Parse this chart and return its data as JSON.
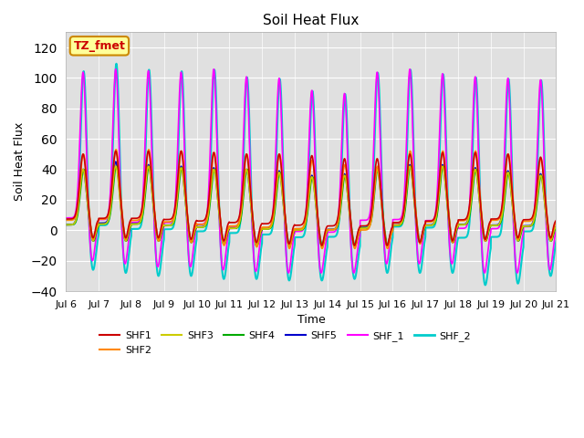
{
  "title": "Soil Heat Flux",
  "xlabel": "Time",
  "ylabel": "Soil Heat Flux",
  "ylim": [
    -40,
    130
  ],
  "yticks": [
    -40,
    -20,
    0,
    20,
    40,
    60,
    80,
    100,
    120
  ],
  "background_color": "#e0e0e0",
  "series": {
    "SHF1": {
      "color": "#cc0000",
      "lw": 1.2
    },
    "SHF2": {
      "color": "#ff8800",
      "lw": 1.2
    },
    "SHF3": {
      "color": "#cccc00",
      "lw": 1.2
    },
    "SHF4": {
      "color": "#00aa00",
      "lw": 1.2
    },
    "SHF5": {
      "color": "#0000cc",
      "lw": 1.2
    },
    "SHF_1": {
      "color": "#ff00ff",
      "lw": 1.2
    },
    "SHF_2": {
      "color": "#00cccc",
      "lw": 1.5
    }
  },
  "annotation_text": "TZ_fmet",
  "annotation_color": "#cc0000",
  "annotation_bg": "#ffff99",
  "annotation_border": "#cc8800",
  "x_start_day": 6,
  "x_end_day": 21,
  "x_tick_days": [
    6,
    7,
    8,
    9,
    10,
    11,
    12,
    13,
    14,
    15,
    16,
    17,
    18,
    19,
    20,
    21
  ]
}
